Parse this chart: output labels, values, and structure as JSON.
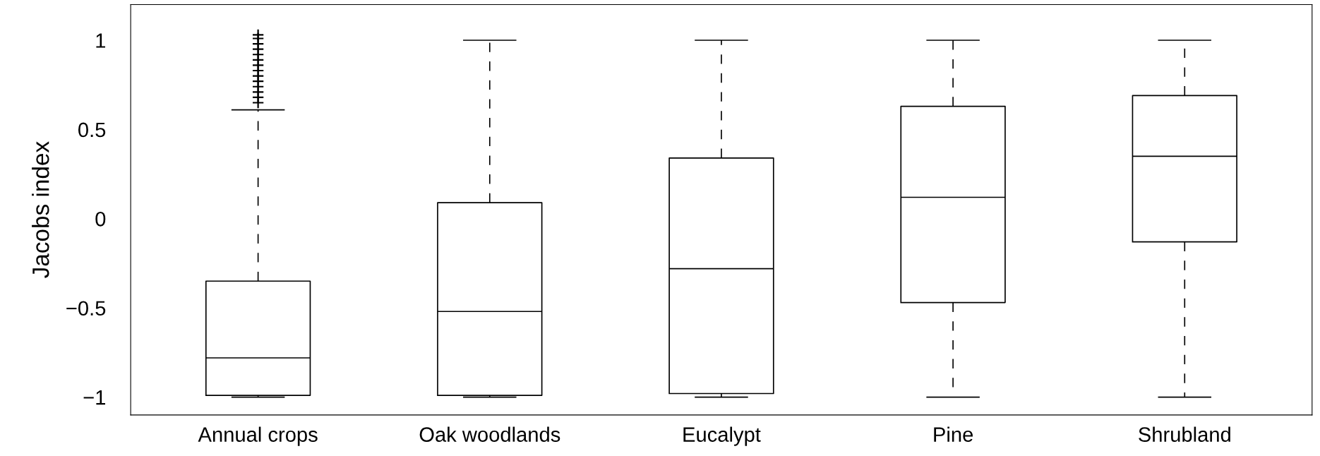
{
  "chart_data": {
    "type": "box",
    "ylabel": "Jacobs index",
    "categories": [
      "Annual crops",
      "Oak woodlands",
      "Eucalypt",
      "Pine",
      "Shrubland"
    ],
    "boxes": [
      {
        "low": -1,
        "q1": -0.99,
        "median": -0.78,
        "q3": -0.35,
        "high": 0.61,
        "outliers": [
          0.65,
          0.68,
          0.71,
          0.74,
          0.77,
          0.8,
          0.83,
          0.86,
          0.89,
          0.92,
          0.95,
          0.98,
          1.01,
          1.03
        ]
      },
      {
        "low": -1,
        "q1": -0.99,
        "median": -0.52,
        "q3": 0.09,
        "high": 1
      },
      {
        "low": -1,
        "q1": -0.98,
        "median": -0.28,
        "q3": 0.34,
        "high": 1
      },
      {
        "low": -1,
        "q1": -0.47,
        "median": 0.12,
        "q3": 0.63,
        "high": 1
      },
      {
        "low": -1,
        "q1": -0.13,
        "median": 0.35,
        "q3": 0.69,
        "high": 1
      }
    ],
    "color": "#000000",
    "line_style": "dashed",
    "marker": "cross",
    "grid": false,
    "ylim": [
      -1.1,
      1.2
    ],
    "yticks": [
      {
        "value": -1,
        "label": "−1"
      },
      {
        "value": -0.5,
        "label": "−0.5"
      },
      0,
      0.5,
      1
    ]
  }
}
